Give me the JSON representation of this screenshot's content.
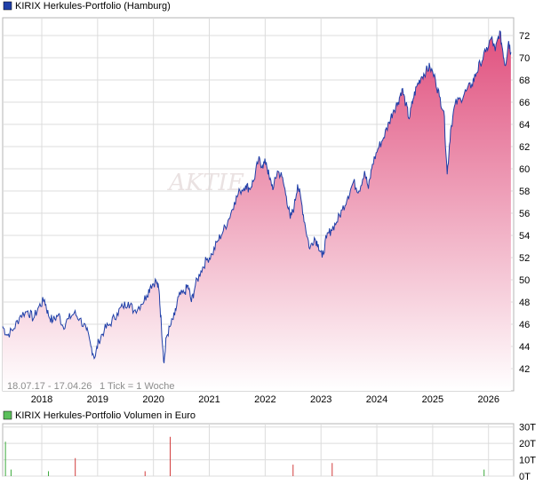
{
  "chart_data": [
    {
      "type": "area",
      "title": "KIRIX Herkules-Portfolio (Hamburg)",
      "date_range_label": "18.07.17 - 17.04.26",
      "tick_note": "1 Tick = 1 Woche",
      "watermark": "AKTIE",
      "colors": {
        "line": "#1f3fa8",
        "fill_top": "#e0507e",
        "fill_bottom": "#ffffff",
        "legend_swatch": "#1f3fa8"
      },
      "grid": true,
      "xlim": [
        2017.3,
        2026.45
      ],
      "ylim": [
        40,
        73.6
      ],
      "x_ticks": [
        2018,
        2019,
        2020,
        2021,
        2022,
        2023,
        2024,
        2025,
        2026
      ],
      "x_tick_labels": [
        "2018",
        "2019",
        "2020",
        "2021",
        "2022",
        "2023",
        "2024",
        "2025",
        "2026"
      ],
      "y_ticks": [
        42,
        44,
        46,
        48,
        50,
        52,
        54,
        56,
        58,
        60,
        62,
        64,
        66,
        68,
        70,
        72
      ],
      "y_tick_labels": [
        "42",
        "44",
        "46",
        "48",
        "50",
        "52",
        "54",
        "56",
        "58",
        "60",
        "62",
        "64",
        "66",
        "68",
        "70",
        "72"
      ],
      "series": [
        {
          "name": "KIRIX Herkules-Portfolio",
          "points": [
            [
              2017.3,
              45.8
            ],
            [
              2017.38,
              45.0
            ],
            [
              2017.5,
              45.6
            ],
            [
              2017.62,
              46.8
            ],
            [
              2017.75,
              47.2
            ],
            [
              2017.85,
              46.5
            ],
            [
              2017.95,
              47.6
            ],
            [
              2018.05,
              48.2
            ],
            [
              2018.12,
              46.8
            ],
            [
              2018.2,
              46.3
            ],
            [
              2018.3,
              46.9
            ],
            [
              2018.38,
              45.8
            ],
            [
              2018.48,
              46.5
            ],
            [
              2018.58,
              47.0
            ],
            [
              2018.68,
              46.5
            ],
            [
              2018.8,
              45.5
            ],
            [
              2018.88,
              44.0
            ],
            [
              2018.95,
              43.0
            ],
            [
              2019.02,
              44.5
            ],
            [
              2019.12,
              45.5
            ],
            [
              2019.22,
              46.0
            ],
            [
              2019.35,
              47.0
            ],
            [
              2019.45,
              47.6
            ],
            [
              2019.55,
              48.0
            ],
            [
              2019.65,
              47.2
            ],
            [
              2019.78,
              47.8
            ],
            [
              2019.88,
              48.6
            ],
            [
              2019.95,
              49.5
            ],
            [
              2020.05,
              49.9
            ],
            [
              2020.1,
              49.0
            ],
            [
              2020.14,
              46.0
            ],
            [
              2020.19,
              42.5
            ],
            [
              2020.23,
              44.8
            ],
            [
              2020.3,
              45.8
            ],
            [
              2020.38,
              46.8
            ],
            [
              2020.45,
              48.5
            ],
            [
              2020.55,
              48.8
            ],
            [
              2020.62,
              49.5
            ],
            [
              2020.68,
              48.0
            ],
            [
              2020.75,
              49.5
            ],
            [
              2020.85,
              50.8
            ],
            [
              2020.95,
              51.8
            ],
            [
              2021.05,
              52.3
            ],
            [
              2021.15,
              53.5
            ],
            [
              2021.25,
              54.4
            ],
            [
              2021.35,
              55.5
            ],
            [
              2021.45,
              57.0
            ],
            [
              2021.55,
              58.0
            ],
            [
              2021.65,
              58.5
            ],
            [
              2021.72,
              58.2
            ],
            [
              2021.8,
              59.0
            ],
            [
              2021.88,
              60.8
            ],
            [
              2021.95,
              60.3
            ],
            [
              2022.02,
              60.6
            ],
            [
              2022.08,
              59.0
            ],
            [
              2022.15,
              58.3
            ],
            [
              2022.22,
              59.8
            ],
            [
              2022.3,
              59.3
            ],
            [
              2022.38,
              57.5
            ],
            [
              2022.45,
              55.5
            ],
            [
              2022.52,
              56.6
            ],
            [
              2022.58,
              58.6
            ],
            [
              2022.65,
              57.0
            ],
            [
              2022.72,
              54.8
            ],
            [
              2022.8,
              52.8
            ],
            [
              2022.88,
              53.8
            ],
            [
              2022.95,
              53.2
            ],
            [
              2023.02,
              52.0
            ],
            [
              2023.1,
              53.8
            ],
            [
              2023.18,
              54.5
            ],
            [
              2023.28,
              55.2
            ],
            [
              2023.38,
              56.3
            ],
            [
              2023.48,
              57.5
            ],
            [
              2023.58,
              58.8
            ],
            [
              2023.68,
              58.0
            ],
            [
              2023.78,
              59.8
            ],
            [
              2023.85,
              58.2
            ],
            [
              2023.92,
              60.4
            ],
            [
              2024.02,
              61.8
            ],
            [
              2024.12,
              62.8
            ],
            [
              2024.22,
              64.2
            ],
            [
              2024.3,
              65.3
            ],
            [
              2024.38,
              66.0
            ],
            [
              2024.45,
              67.2
            ],
            [
              2024.52,
              65.8
            ],
            [
              2024.58,
              64.5
            ],
            [
              2024.65,
              66.3
            ],
            [
              2024.72,
              67.5
            ],
            [
              2024.8,
              68.3
            ],
            [
              2024.88,
              68.8
            ],
            [
              2024.95,
              69.2
            ],
            [
              2025.05,
              68.0
            ],
            [
              2025.12,
              66.5
            ],
            [
              2025.2,
              65.2
            ],
            [
              2025.26,
              59.5
            ],
            [
              2025.32,
              63.5
            ],
            [
              2025.4,
              65.8
            ],
            [
              2025.5,
              66.3
            ],
            [
              2025.6,
              67.0
            ],
            [
              2025.7,
              67.6
            ],
            [
              2025.78,
              68.6
            ],
            [
              2025.85,
              69.5
            ],
            [
              2025.95,
              70.5
            ],
            [
              2026.05,
              71.8
            ],
            [
              2026.12,
              70.6
            ],
            [
              2026.2,
              72.4
            ],
            [
              2026.25,
              70.8
            ],
            [
              2026.3,
              69.3
            ],
            [
              2026.36,
              71.5
            ],
            [
              2026.4,
              70.5
            ]
          ]
        }
      ]
    },
    {
      "type": "bar",
      "title": "KIRIX Herkules-Portfolio Volumen in Euro",
      "colors": {
        "up": "#3caa3c",
        "down": "#d23c3c",
        "legend_swatch": "#5cc05c"
      },
      "grid": true,
      "xlim": [
        2017.3,
        2026.45
      ],
      "ylim": [
        0,
        32
      ],
      "y_ticks": [
        0,
        10,
        20,
        30
      ],
      "y_tick_labels": [
        "0T",
        "10T",
        "20T",
        "30T"
      ],
      "bars": [
        {
          "x": 2017.35,
          "value": 21,
          "direction": "up"
        },
        {
          "x": 2017.45,
          "value": 4,
          "direction": "up"
        },
        {
          "x": 2018.12,
          "value": 3,
          "direction": "up"
        },
        {
          "x": 2018.6,
          "value": 11,
          "direction": "down"
        },
        {
          "x": 2019.85,
          "value": 3,
          "direction": "down"
        },
        {
          "x": 2020.3,
          "value": 24,
          "direction": "down"
        },
        {
          "x": 2022.5,
          "value": 7,
          "direction": "down"
        },
        {
          "x": 2023.2,
          "value": 8,
          "direction": "down"
        },
        {
          "x": 2025.92,
          "value": 4,
          "direction": "up"
        }
      ]
    }
  ]
}
